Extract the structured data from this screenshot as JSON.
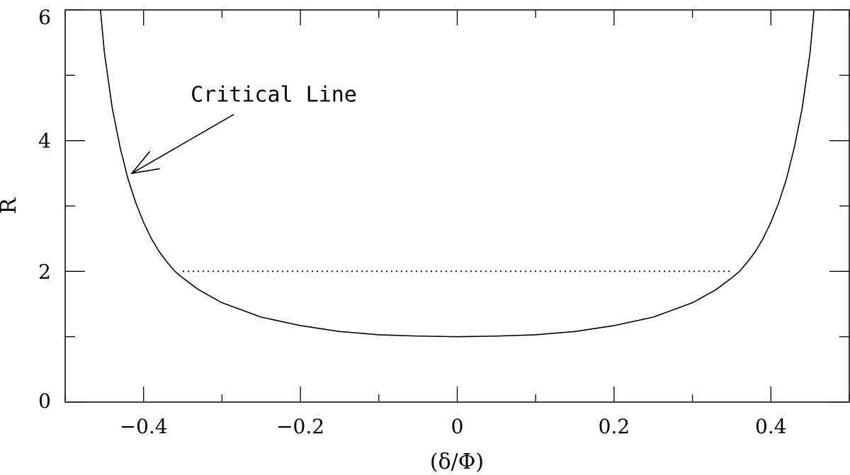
{
  "chart_data": {
    "type": "line",
    "xlabel": "(δ/Φ)",
    "ylabel": "R",
    "xlim": [
      -0.5,
      0.5
    ],
    "ylim": [
      0,
      6
    ],
    "x_ticks_major": [
      -0.4,
      -0.2,
      0,
      0.2,
      0.4
    ],
    "x_tick_labels": [
      "−0.4",
      "−0.2",
      "0",
      "0.2",
      "0.4"
    ],
    "x_ticks_minor_step": 0.1,
    "y_ticks_major": [
      0,
      2,
      4,
      6
    ],
    "y_tick_labels": [
      "0",
      "2",
      "4",
      "6"
    ],
    "y_ticks_minor_step": 1,
    "grid": false,
    "series": [
      {
        "style": "solid",
        "color": "#000000",
        "x": [
          -0.455,
          -0.45,
          -0.44,
          -0.43,
          -0.42,
          -0.41,
          -0.4,
          -0.39,
          -0.38,
          -0.37,
          -0.36,
          -0.35,
          -0.33,
          -0.3,
          -0.25,
          -0.2,
          -0.15,
          -0.1,
          -0.05,
          0,
          0.05,
          0.1,
          0.15,
          0.2,
          0.25,
          0.3,
          0.33,
          0.35,
          0.36,
          0.37,
          0.38,
          0.39,
          0.4,
          0.41,
          0.42,
          0.43,
          0.44,
          0.45,
          0.455
        ],
        "y": [
          6.0,
          5.35,
          4.5,
          3.9,
          3.42,
          3.05,
          2.75,
          2.5,
          2.3,
          2.14,
          2.0,
          1.9,
          1.72,
          1.52,
          1.3,
          1.17,
          1.08,
          1.03,
          1.01,
          1.0,
          1.01,
          1.03,
          1.08,
          1.17,
          1.3,
          1.52,
          1.72,
          1.9,
          2.0,
          2.14,
          2.3,
          2.5,
          2.75,
          3.05,
          3.42,
          3.9,
          4.5,
          5.35,
          6.0
        ]
      },
      {
        "style": "dotted",
        "color": "#000000",
        "x": [
          -0.35,
          0.35
        ],
        "y": [
          2,
          2
        ]
      }
    ],
    "annotations": [
      {
        "text": "Critical Line",
        "text_x": -0.34,
        "text_y": 4.6,
        "arrow_from": [
          -0.285,
          4.4
        ],
        "arrow_to": [
          -0.415,
          3.5
        ]
      }
    ]
  }
}
